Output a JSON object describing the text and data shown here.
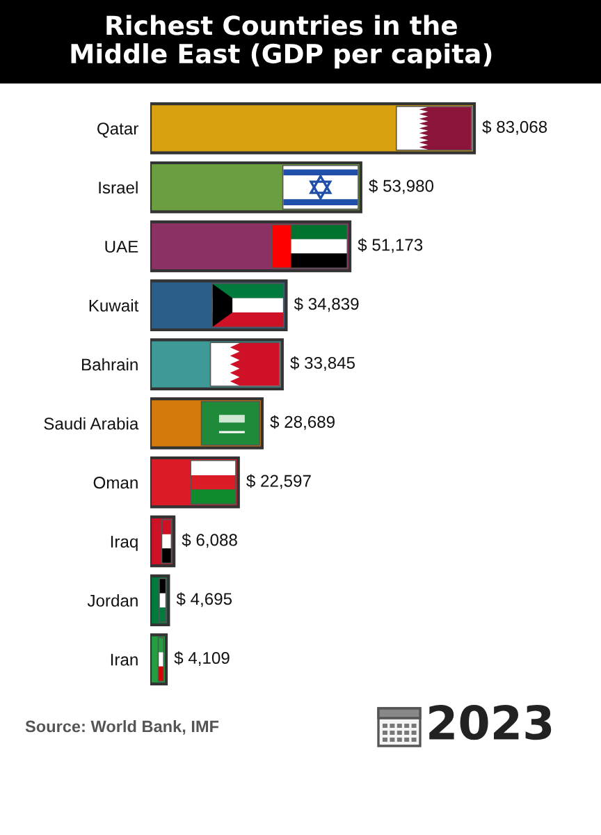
{
  "chart_data": {
    "type": "bar",
    "orientation": "horizontal",
    "title": "Richest Countries in the\nMiddle East (GDP per capita)",
    "categories": [
      "Qatar",
      "Israel",
      "UAE",
      "Kuwait",
      "Bahrain",
      "Saudi Arabia",
      "Oman",
      "Iraq",
      "Jordan",
      "Iran"
    ],
    "values": [
      83068,
      53980,
      51173,
      34839,
      33845,
      28689,
      22597,
      6088,
      4695,
      4109
    ],
    "colors": [
      "#d6a00e",
      "#6b9e3e",
      "#8b3163",
      "#2b5f8a",
      "#3d9a97",
      "#d27a0c",
      "#db1c26",
      "#ce1126",
      "#007a3d",
      "#239f40"
    ],
    "value_labels": [
      "$ 83,068",
      "$ 53,980",
      "$ 51,173",
      "$ 34,839",
      "$ 33,845",
      "$ 28,689",
      "$ 22,597",
      "$ 6,088",
      "$ 4,695",
      "$ 4,109"
    ],
    "tick_labels": "y",
    "annotations": [
      "Source: World Bank, IMF",
      "2023"
    ]
  }
}
